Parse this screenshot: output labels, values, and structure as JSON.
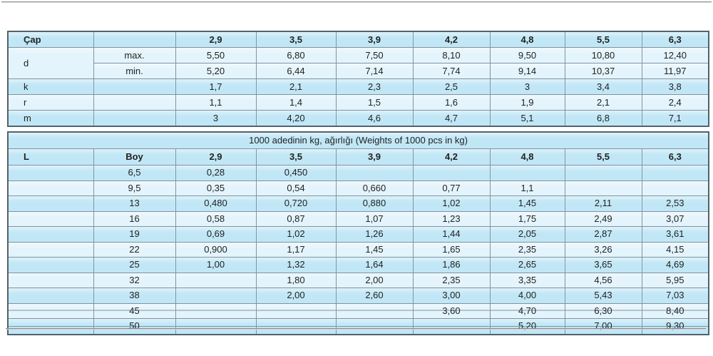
{
  "page": {
    "background": "#ffffff",
    "accent_row_color": "#c1e7f6",
    "light_row_color": "#e4f4fc",
    "grid_line_color": "#7e93a0",
    "outer_border_color": "#52626c"
  },
  "dimensions_table": {
    "header_label": "Çap",
    "col_headers": [
      "2,9",
      "3,5",
      "3,9",
      "4,2",
      "4,8",
      "5,5",
      "6,3"
    ],
    "rows": [
      {
        "label": "d",
        "sub": "max.",
        "shade": "light",
        "values": [
          "5,50",
          "6,80",
          "7,50",
          "8,10",
          "9,50",
          "10,80",
          "12,40"
        ]
      },
      {
        "label": "d",
        "sub": "min.",
        "shade": "light",
        "values": [
          "5,20",
          "6,44",
          "7,14",
          "7,74",
          "9,14",
          "10,37",
          "11,97"
        ]
      },
      {
        "label": "k",
        "sub": "",
        "shade": "dark",
        "values": [
          "1,7",
          "2,1",
          "2,3",
          "2,5",
          "3",
          "3,4",
          "3,8"
        ]
      },
      {
        "label": "r",
        "sub": "",
        "shade": "light",
        "values": [
          "1,1",
          "1,4",
          "1,5",
          "1,6",
          "1,9",
          "2,1",
          "2,4"
        ]
      },
      {
        "label": "m",
        "sub": "",
        "shade": "dark",
        "values": [
          "3",
          "4,20",
          "4,6",
          "4,7",
          "5,1",
          "6,8",
          "7,1"
        ]
      }
    ]
  },
  "weights_table": {
    "caption": "1000 adedinin kg, ağırlığı  (Weights of 1000 pcs in kg)",
    "l_header": "L",
    "boy_header": "Boy",
    "col_headers": [
      "2,9",
      "3,5",
      "3,9",
      "4,2",
      "4,8",
      "5,5",
      "6,3"
    ],
    "rows": [
      {
        "boy": "6,5",
        "struck": false,
        "values": [
          "0,28",
          "0,450",
          "",
          "",
          "",
          "",
          ""
        ]
      },
      {
        "boy": "9,5",
        "struck": false,
        "values": [
          "0,35",
          "0,54",
          "0,660",
          "0,77",
          "1,1",
          "",
          ""
        ]
      },
      {
        "boy": "13",
        "struck": false,
        "values": [
          "0,480",
          "0,720",
          "0,880",
          "1,02",
          "1,45",
          "2,11",
          "2,53"
        ]
      },
      {
        "boy": "16",
        "struck": false,
        "values": [
          "0,58",
          "0,87",
          "1,07",
          "1,23",
          "1,75",
          "2,49",
          "3,07"
        ]
      },
      {
        "boy": "19",
        "struck": false,
        "values": [
          "0,69",
          "1,02",
          "1,26",
          "1,44",
          "2,05",
          "2,87",
          "3,61"
        ]
      },
      {
        "boy": "22",
        "struck": false,
        "values": [
          "0,900",
          "1,17",
          "1,45",
          "1,65",
          "2,35",
          "3,26",
          "4,15"
        ]
      },
      {
        "boy": "25",
        "struck": false,
        "values": [
          "1,00",
          "1,32",
          "1,64",
          "1,86",
          "2,65",
          "3,65",
          "4,69"
        ]
      },
      {
        "boy": "32",
        "struck": false,
        "values": [
          "",
          "1,80",
          "2,00",
          "2,35",
          "3,35",
          "4,56",
          "5,95"
        ]
      },
      {
        "boy": "38",
        "struck": false,
        "values": [
          "",
          "2,00",
          "2,60",
          "3,00",
          "4,00",
          "5,43",
          "7,03"
        ]
      },
      {
        "boy": "45",
        "struck": true,
        "values": [
          "",
          "",
          "",
          "3,60",
          "4,70",
          "6,30",
          "8,40"
        ]
      },
      {
        "boy": "50",
        "struck": true,
        "values": [
          "",
          "",
          "",
          "",
          "5,20",
          "7,00",
          "9,30"
        ]
      }
    ]
  }
}
